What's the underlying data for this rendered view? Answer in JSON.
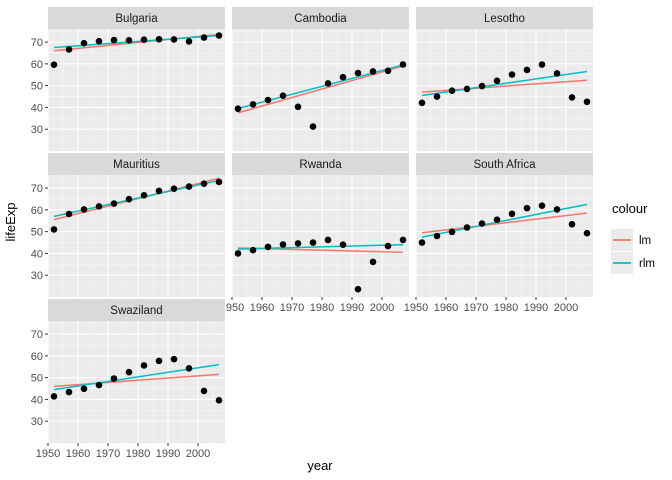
{
  "chart_data": {
    "type": "scatter",
    "xlabel": "year",
    "ylabel": "lifeExp",
    "x": [
      1952,
      1957,
      1962,
      1967,
      1972,
      1977,
      1982,
      1987,
      1992,
      1997,
      2002,
      2007
    ],
    "xlim": [
      1950,
      2009
    ],
    "ylim": [
      20,
      76
    ],
    "x_ticks": [
      1950,
      1960,
      1970,
      1980,
      1990,
      2000
    ],
    "y_ticks": [
      30,
      40,
      50,
      60,
      70
    ],
    "grid": true,
    "legend": {
      "title": "colour",
      "position": "right",
      "entries": [
        {
          "name": "lm",
          "color": "#F8766D"
        },
        {
          "name": "rlm",
          "color": "#00BFC4"
        }
      ]
    },
    "facets": [
      {
        "name": "Bulgaria",
        "values": [
          59.6,
          66.6,
          69.5,
          70.4,
          70.9,
          70.8,
          71.1,
          71.3,
          71.2,
          70.3,
          72.1,
          73.0
        ],
        "lm": [
          66.0,
          73.5
        ],
        "rlm": [
          67.5,
          73.0
        ]
      },
      {
        "name": "Cambodia",
        "values": [
          39.4,
          41.4,
          43.4,
          45.4,
          40.3,
          31.2,
          51.0,
          53.9,
          55.8,
          56.5,
          56.8,
          59.7
        ],
        "lm": [
          37.5,
          59.0
        ],
        "rlm": [
          39.5,
          59.5
        ]
      },
      {
        "name": "Lesotho",
        "values": [
          42.1,
          45.0,
          47.7,
          48.5,
          49.8,
          52.2,
          55.1,
          57.2,
          59.7,
          55.6,
          44.6,
          42.6
        ],
        "lm": [
          47.0,
          52.5
        ],
        "rlm": [
          45.5,
          56.5
        ]
      },
      {
        "name": "Mauritius",
        "values": [
          51.0,
          58.1,
          60.2,
          61.6,
          62.9,
          64.9,
          66.7,
          68.7,
          69.7,
          70.7,
          72.0,
          72.8
        ],
        "lm": [
          55.5,
          74.5
        ],
        "rlm": [
          57.0,
          73.5
        ]
      },
      {
        "name": "Rwanda",
        "values": [
          40.0,
          41.5,
          43.0,
          44.1,
          44.6,
          45.0,
          46.2,
          44.0,
          23.6,
          36.1,
          43.4,
          46.2
        ],
        "lm": [
          42.5,
          40.5
        ],
        "rlm": [
          42.0,
          44.0
        ]
      },
      {
        "name": "South Africa",
        "values": [
          45.0,
          48.0,
          49.9,
          51.9,
          53.7,
          55.5,
          58.2,
          60.8,
          61.9,
          60.2,
          53.4,
          49.3
        ],
        "lm": [
          49.5,
          58.5
        ],
        "rlm": [
          47.5,
          62.5
        ]
      },
      {
        "name": "Swaziland",
        "values": [
          41.4,
          43.4,
          44.9,
          46.6,
          49.6,
          52.5,
          55.6,
          57.7,
          58.5,
          54.3,
          43.9,
          39.6
        ],
        "lm": [
          46.0,
          51.5
        ],
        "rlm": [
          44.5,
          56.0
        ]
      }
    ]
  }
}
